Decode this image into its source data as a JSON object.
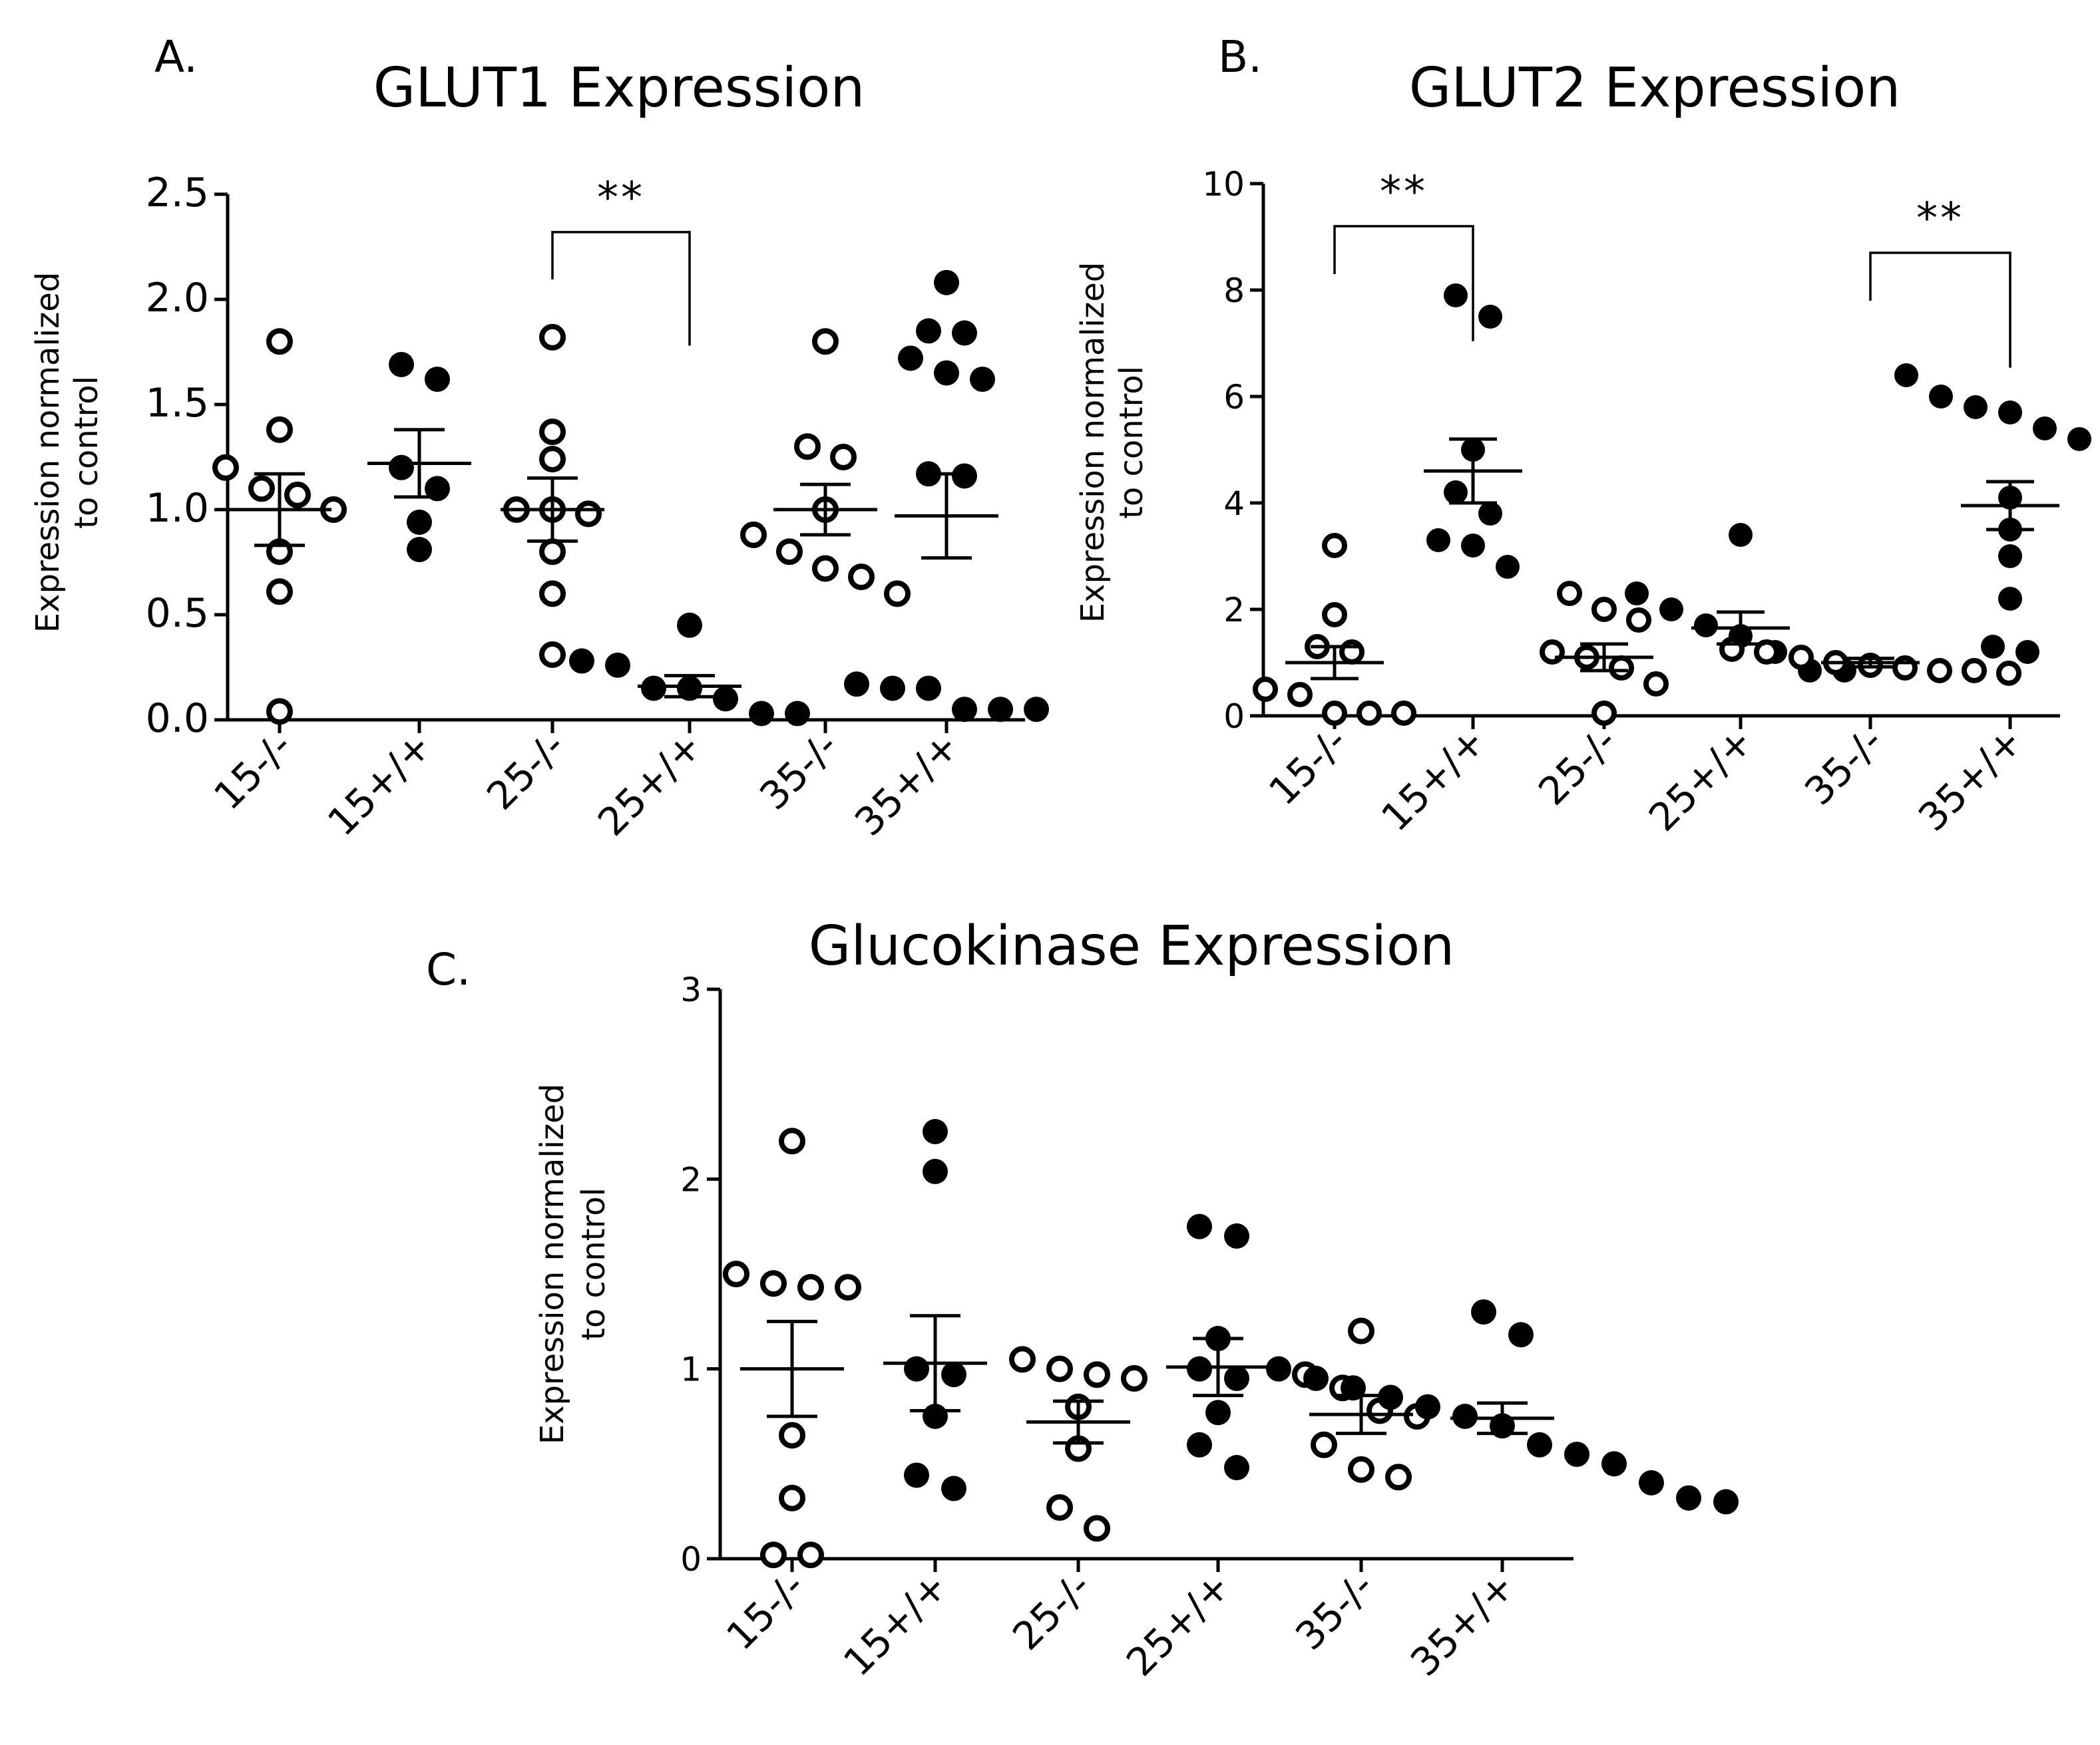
{
  "chart_data": [
    {
      "panel": "A.",
      "type": "scatter",
      "title": "GLUT1 Expression",
      "ylabel_lines": [
        "Expression normalized",
        "to control"
      ],
      "xlabel": "",
      "ylim": [
        0,
        2.5
      ],
      "y_ticks": [
        "0.0",
        "0.5",
        "1.0",
        "1.5",
        "2.0",
        "2.5"
      ],
      "categories": [
        "15-/-",
        "15+/+",
        "25-/-",
        "25+/+",
        "35-/-",
        "35+/+"
      ],
      "marker": [
        "open",
        "filled",
        "open",
        "filled",
        "open",
        "filled"
      ],
      "points": [
        [
          1.8,
          1.38,
          1.2,
          1.1,
          1.07,
          1.0,
          0.8,
          0.61,
          0.04
        ],
        [
          1.69,
          1.62,
          1.2,
          1.1,
          0.94,
          0.81
        ],
        [
          1.82,
          1.37,
          1.24,
          1.0,
          1.0,
          0.98,
          0.8,
          0.6,
          0.31
        ],
        [
          0.45,
          0.28,
          0.26,
          0.15,
          0.15,
          0.1,
          0.03,
          0.03
        ],
        [
          1.8,
          1.3,
          1.25,
          1.0,
          0.88,
          0.8,
          0.72,
          0.68,
          0.6
        ],
        [
          2.08,
          1.85,
          1.84,
          1.72,
          1.65,
          1.62,
          1.17,
          1.16,
          0.17,
          0.15,
          0.15,
          0.05,
          0.05,
          0.05
        ]
      ],
      "mean": [
        1.0,
        1.22,
        1.0,
        0.16,
        1.0,
        0.97
      ],
      "sem": [
        0.17,
        0.16,
        0.15,
        0.05,
        0.12,
        0.2
      ],
      "significance": [
        {
          "from": 2,
          "to": 3,
          "y": 2.32,
          "label": "**"
        }
      ]
    },
    {
      "panel": "B.",
      "type": "scatter",
      "title": "GLUT2 Expression",
      "ylabel_lines": [
        "Expression normalized",
        "to control"
      ],
      "xlabel": "",
      "ylim": [
        0,
        10
      ],
      "y_ticks": [
        "0",
        "2",
        "4",
        "6",
        "8",
        "10"
      ],
      "categories": [
        "15-/-",
        "15+/+",
        "25-/-",
        "25+/+",
        "35-/-",
        "35+/+"
      ],
      "marker": [
        "open",
        "filled",
        "open",
        "filled",
        "open",
        "filled"
      ],
      "points": [
        [
          3.2,
          1.9,
          1.3,
          1.2,
          0.5,
          0.4,
          0.05,
          0.05,
          0.05
        ],
        [
          7.9,
          7.5,
          5.0,
          4.2,
          3.8,
          3.3,
          3.2,
          2.8
        ],
        [
          2.3,
          2.0,
          1.8,
          1.2,
          1.1,
          0.9,
          0.6,
          0.05
        ],
        [
          3.4,
          2.3,
          2.0,
          1.7,
          1.5,
          1.2,
          0.85,
          0.85
        ],
        [
          1.25,
          1.2,
          1.1,
          1.0,
          0.95,
          0.9,
          0.85,
          0.85,
          0.8
        ],
        [
          6.4,
          6.0,
          5.8,
          5.7,
          5.4,
          5.2,
          4.8,
          4.1,
          3.5,
          3.0,
          2.2,
          1.3,
          1.2
        ]
      ],
      "mean": [
        1.0,
        4.6,
        1.1,
        1.65,
        1.0,
        3.95
      ],
      "sem": [
        0.3,
        0.6,
        0.25,
        0.3,
        0.08,
        0.45
      ],
      "significance": [
        {
          "from": 0,
          "to": 1,
          "y": 9.2,
          "label": "**"
        },
        {
          "from": 4,
          "to": 5,
          "y": 8.7,
          "label": "**"
        }
      ]
    },
    {
      "panel": "C.",
      "type": "scatter",
      "title": "Glucokinase Expression",
      "ylabel_lines": [
        "Expression normalized",
        "to control"
      ],
      "xlabel": "",
      "ylim": [
        0,
        3
      ],
      "y_ticks": [
        "0",
        "1",
        "2",
        "3"
      ],
      "categories": [
        "15-/-",
        "15+/+",
        "25-/-",
        "25+/+",
        "35-/-",
        "35+/+"
      ],
      "marker": [
        "open",
        "filled",
        "open",
        "filled",
        "open",
        "filled"
      ],
      "points": [
        [
          2.2,
          1.5,
          1.45,
          1.43,
          1.43,
          0.65,
          0.32,
          0.02,
          0.02
        ],
        [
          2.25,
          2.04,
          1.0,
          0.97,
          0.75,
          0.44,
          0.37
        ],
        [
          1.05,
          1.0,
          0.97,
          0.95,
          0.8,
          0.58,
          0.27,
          0.16
        ],
        [
          1.75,
          1.7,
          1.16,
          1.0,
          0.95,
          0.77,
          0.6,
          0.48
        ],
        [
          1.2,
          0.97,
          0.9,
          0.78,
          0.75,
          0.6,
          0.47,
          0.43
        ],
        [
          1.3,
          1.18,
          1.0,
          0.95,
          0.9,
          0.85,
          0.8,
          0.75,
          0.7,
          0.6,
          0.55,
          0.5,
          0.4,
          0.32,
          0.3
        ]
      ],
      "mean": [
        1.0,
        1.03,
        0.72,
        1.01,
        0.76,
        0.74
      ],
      "sem": [
        0.25,
        0.25,
        0.11,
        0.15,
        0.1,
        0.08
      ],
      "significance": []
    }
  ]
}
